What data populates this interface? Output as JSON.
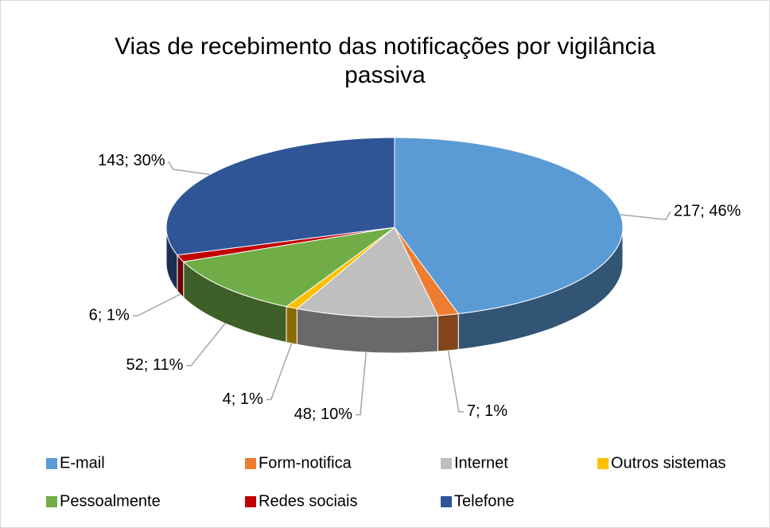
{
  "chart_data": {
    "type": "pie3d",
    "title": "Vias de recebimento das notificações por vigilância passiva",
    "categories": [
      "E-mail",
      "Form-notifica",
      "Internet",
      "Outros sistemas",
      "Pessoalmente",
      "Redes sociais",
      "Telefone"
    ],
    "values": [
      217,
      7,
      48,
      4,
      52,
      6,
      143
    ],
    "value_labels": [
      "217; 46%",
      "7; 1%",
      "48; 10%",
      "4; 1%",
      "52; 11%",
      "6; 1%",
      "143; 30%"
    ],
    "colors": [
      "#5b9bd5",
      "#ed7d31",
      "#bfbfbf",
      "#ffc000",
      "#70ad47",
      "#c00000",
      "#2f5597"
    ],
    "legend": "bottom"
  }
}
